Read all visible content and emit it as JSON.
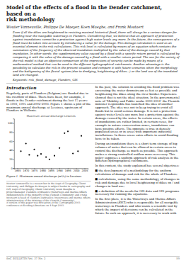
{
  "page": {
    "title": "Model of the effects of a flood in the Dender catchment, based on a\nrisk methodology",
    "authors": "Wouter Vanneuville, Philippe De Maeyer, Koen Maeghe, and Frank Mostaert",
    "abstract": "Even if all the dikes are heightened to resisting maximal historical flood, there will always be a serious danger for flooding near the navigable waterways in Flanders. Considering that, we believe that an approach of protection against inundations cannot be a protection against high water levels any more. In the future, the consequences of a flood must be taken into account by introducing a value for the damage. This damage calculation is used as an essential element in the risk calculations. This risk level is calculated by means of an equation which contains the summation of the frequency of the observed inundation multiplied by the value of the damage caused by that inundation. In other words: the supplementary value caused by a flood with a specific return period is calculated by comparing it with the value of the damage caused by a flood with a smaller return period. The use for the society of the risk model is that an objective comparison of the impressions of security can be made by means of a mathematical method that can be used in the different hydrographical catchments. Another advantage is the possibility to calculate the risk in the present situation and compare it with future scenarios when the morphology and the bathymetry of the fluvial system (due to dredging, heightening of dikes...) or the land use of the inundated land are changed.",
    "keywords": "Keywords: risk, flood, damage, Flanders, GIS",
    "intro_title": "Introduction",
    "intro_text": "Regularly, parts of Flanders (Belgium) are flooded due to the overflow of dikes. There have been, for example, 3 floods in the Dender catchment during the last 15 years: in 1993, 1995 and 2002-2003. Figure 1 shows a plot of the maximum annual discharge at Lessines, upstream of Flanders in Wallonia.",
    "figure_caption": "Figure 1. Maximum annual discharge (m³/s) in Lessines",
    "footnote": "Wouter Vanneuville is a researcher in the Dept of Geography, Ghent University, and Philippe de Maeyer is subject leader in cartography and GIS, Dept of Geography, Ghent University. Koen Maeghe is projectmanager, Flanders Hydraulics (Waterways and Marine Affairs Administration of the Ministry of the Flemish Community) and Frank Mostaert is head of Flanders Hydraulics (Waterways and Marine Affairs Administration of the Ministry of the Flemish Community).\nA version of this paper was first given at the Cartography 2003 conference at flooding Librarians on 4 Sept 2003.",
    "right_col": [
      "In the past, the solution to avoiding the flood problem was excavating the water downstream as fast as possible and heightening the dikes along the river border. Experience showed that is not the ideal situation. In the governmental note of ‘Mobility and Public works 2000-2004’ the Flemish minister responsible has launched the idea of another approach. The idea was not to keep trying to avoid all floods but to avoid serious damage. It is not a protection against water levels any more but a protection against the damage caused by the water. In certain areas, the effects of inundations are rather limited, in certain cases, for example in nature conservation zones, inundations can have positive effects. The opposite is true in densely populated areas or in areas with important industrial installations. In those areas extra efforts to avoid flooding have to be taken.",
      "During an inundation there is a short term storage of big volumes of water that can be allowed in certain areas to control the discharge as much as possible. This approach makes a strong controlled outflow more necessary. This policy supposes a uniform approach of risk analysis in the different hydrographical catchments.",
      "In this context, the study explained has several objectives:",
      "■ the development of a methodology for the uniform calculation of damage and risk for the whole of Flanders;",
      "■ calculations, using the same methodology, of changes in risk and damage due to local heightening of dikes on / and changes in land use;",
      "■ a definition of the needs for GIS data and GIS programs necessary for running the equations.",
      "In the first place, it is the Waterways and Marine Affairs Administration (AWZ) who is responsible for all navigable waterways in Flanders and who wants a scientific tool by which the impact of decisions can be calculated in the future. In such an approach, it is necessary to work with"
    ],
    "footer_text": "SoC BULLETIN Vol. 37 No. 2",
    "footer_page": "59"
  },
  "chart_data": {
    "type": "scatter",
    "title": "Maximum annual discharge Lessines",
    "x": [
      1967,
      1970,
      1972,
      1975,
      1977,
      1979,
      1982,
      1984,
      1987,
      1990,
      1993,
      1995,
      1998,
      2001,
      2003
    ],
    "values": [
      38,
      55,
      30,
      42,
      28,
      32,
      25,
      20,
      28,
      45,
      78,
      82,
      33,
      38,
      72
    ],
    "color": "#111111",
    "xlim": [
      1963,
      2007
    ],
    "xticks": [
      1965,
      1970,
      1975,
      1980,
      1985,
      1990,
      1995,
      2000,
      2005
    ],
    "ylim": [
      0,
      110
    ],
    "yticks": [
      0,
      20,
      40,
      60,
      80,
      100
    ],
    "grid": false
  }
}
